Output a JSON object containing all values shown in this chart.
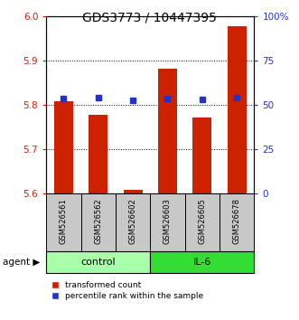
{
  "title": "GDS3773 / 10447395",
  "categories": [
    "GSM526561",
    "GSM526562",
    "GSM526602",
    "GSM526603",
    "GSM526605",
    "GSM526678"
  ],
  "groups": [
    {
      "name": "control",
      "indices": [
        0,
        1,
        2
      ],
      "color": "#AAFFAA"
    },
    {
      "name": "IL-6",
      "indices": [
        3,
        4,
        5
      ],
      "color": "#33DD33"
    }
  ],
  "bar_values": [
    5.808,
    5.778,
    5.608,
    5.882,
    5.772,
    5.978
  ],
  "bar_bottom": 5.6,
  "blue_values": [
    0.535,
    0.54,
    0.525,
    0.535,
    0.53,
    0.54
  ],
  "ylim": [
    5.6,
    6.0
  ],
  "yticks_left": [
    5.6,
    5.7,
    5.8,
    5.9,
    6.0
  ],
  "yticks_right_vals": [
    0,
    25,
    50,
    75,
    100
  ],
  "bar_color": "#CC2200",
  "blue_color": "#2233CC",
  "label_fontsize": 7.5,
  "title_fontsize": 10,
  "agent_label": "agent",
  "legend_red": "transformed count",
  "legend_blue": "percentile rank within the sample",
  "bar_width": 0.55
}
